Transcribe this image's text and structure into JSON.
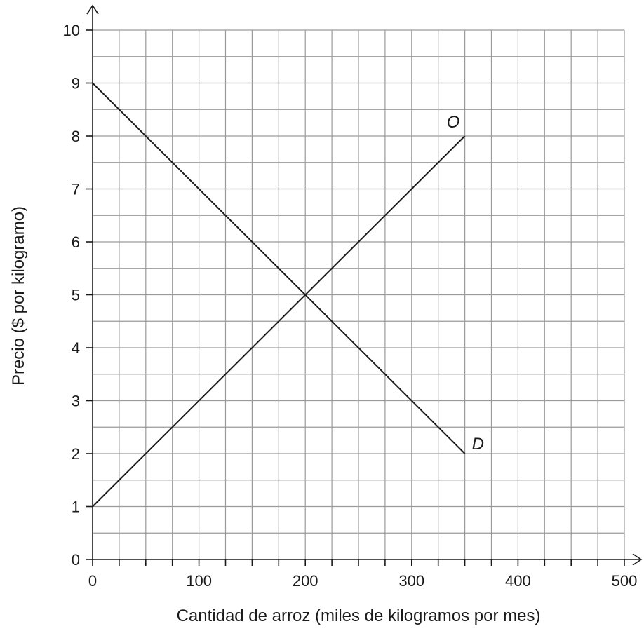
{
  "chart_data": {
    "type": "line",
    "xlabel": "Cantidad de arroz (miles de kilogramos por mes)",
    "ylabel": "Precio ($ por kilogramo)",
    "xlim": [
      0,
      500
    ],
    "ylim": [
      0,
      10
    ],
    "x_ticks": [
      0,
      100,
      200,
      300,
      400,
      500
    ],
    "y_ticks": [
      0,
      1,
      2,
      3,
      4,
      5,
      6,
      7,
      8,
      9,
      10
    ],
    "x_tick_labels": [
      "0",
      "100",
      "200",
      "300",
      "400",
      "500"
    ],
    "y_tick_labels": [
      "0",
      "1",
      "2",
      "3",
      "4",
      "5",
      "6",
      "7",
      "8",
      "9",
      "10"
    ],
    "grid": true,
    "grid_x_minor_step": 25,
    "grid_y_minor_step": 0.5,
    "series": [
      {
        "name": "O",
        "x": [
          0,
          350
        ],
        "y": [
          1,
          8
        ],
        "label_anchor": [
          350,
          8
        ]
      },
      {
        "name": "D",
        "x": [
          0,
          350
        ],
        "y": [
          9,
          2
        ],
        "label_anchor": [
          350,
          2
        ]
      }
    ]
  },
  "colors": {
    "line": "#1a1a1a",
    "grid": "#9a9a9a",
    "axis": "#1a1a1a"
  }
}
